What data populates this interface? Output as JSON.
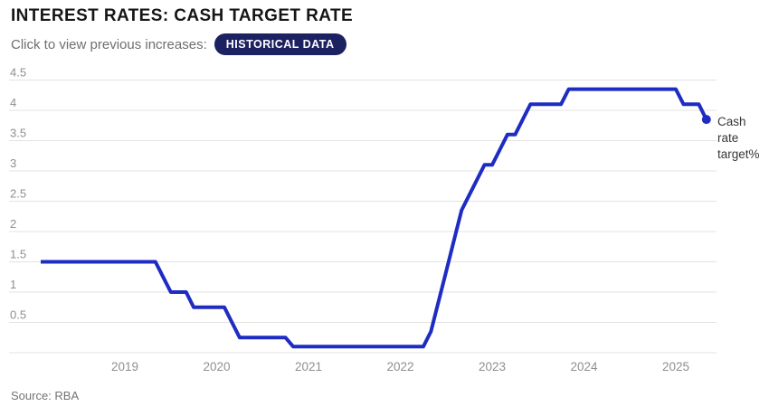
{
  "header": {
    "title": "INTEREST RATES: CASH TARGET RATE",
    "subtitle": "Click to view previous increases:",
    "badge_label": "HISTORICAL DATA"
  },
  "footer": {
    "source": "Source: RBA"
  },
  "colors": {
    "line": "#1e2cc2",
    "badge_bg": "#1b2161",
    "grid": "#e3e3e3",
    "axis_label": "#8f8f8f",
    "annotation": "#373737"
  },
  "chart_data": {
    "type": "line",
    "title": "Interest rates: cash target rate",
    "xlabel": "",
    "ylabel": "",
    "ylim": [
      0,
      4.5
    ],
    "grid": true,
    "y_ticks": [
      0.5,
      1,
      1.5,
      2,
      2.5,
      3,
      3.5,
      4,
      4.5
    ],
    "x_ticks": [
      "2019",
      "2020",
      "2021",
      "2022",
      "2023",
      "2024",
      "2025"
    ],
    "annotation_lines": [
      "Cash",
      "rate",
      "target%"
    ],
    "series": [
      {
        "name": "Cash rate target%",
        "points": [
          [
            "2018-02",
            1.5
          ],
          [
            "2018-03",
            1.5
          ],
          [
            "2018-04",
            1.5
          ],
          [
            "2018-05",
            1.5
          ],
          [
            "2018-06",
            1.5
          ],
          [
            "2018-07",
            1.5
          ],
          [
            "2018-08",
            1.5
          ],
          [
            "2018-09",
            1.5
          ],
          [
            "2018-10",
            1.5
          ],
          [
            "2018-11",
            1.5
          ],
          [
            "2018-12",
            1.5
          ],
          [
            "2019-01",
            1.5
          ],
          [
            "2019-02",
            1.5
          ],
          [
            "2019-03",
            1.5
          ],
          [
            "2019-04",
            1.5
          ],
          [
            "2019-05",
            1.5
          ],
          [
            "2019-06",
            1.25
          ],
          [
            "2019-07",
            1.0
          ],
          [
            "2019-08",
            1.0
          ],
          [
            "2019-09",
            1.0
          ],
          [
            "2019-10",
            0.75
          ],
          [
            "2019-11",
            0.75
          ],
          [
            "2019-12",
            0.75
          ],
          [
            "2020-01",
            0.75
          ],
          [
            "2020-02",
            0.75
          ],
          [
            "2020-03",
            0.5
          ],
          [
            "2020-04",
            0.25
          ],
          [
            "2020-05",
            0.25
          ],
          [
            "2020-06",
            0.25
          ],
          [
            "2020-07",
            0.25
          ],
          [
            "2020-08",
            0.25
          ],
          [
            "2020-09",
            0.25
          ],
          [
            "2020-10",
            0.25
          ],
          [
            "2020-11",
            0.1
          ],
          [
            "2020-12",
            0.1
          ],
          [
            "2021-01",
            0.1
          ],
          [
            "2021-02",
            0.1
          ],
          [
            "2021-03",
            0.1
          ],
          [
            "2021-04",
            0.1
          ],
          [
            "2021-05",
            0.1
          ],
          [
            "2021-06",
            0.1
          ],
          [
            "2021-07",
            0.1
          ],
          [
            "2021-08",
            0.1
          ],
          [
            "2021-09",
            0.1
          ],
          [
            "2021-10",
            0.1
          ],
          [
            "2021-11",
            0.1
          ],
          [
            "2021-12",
            0.1
          ],
          [
            "2022-01",
            0.1
          ],
          [
            "2022-02",
            0.1
          ],
          [
            "2022-03",
            0.1
          ],
          [
            "2022-04",
            0.1
          ],
          [
            "2022-05",
            0.35
          ],
          [
            "2022-06",
            0.85
          ],
          [
            "2022-07",
            1.35
          ],
          [
            "2022-08",
            1.85
          ],
          [
            "2022-09",
            2.35
          ],
          [
            "2022-10",
            2.6
          ],
          [
            "2022-11",
            2.85
          ],
          [
            "2022-12",
            3.1
          ],
          [
            "2023-01",
            3.1
          ],
          [
            "2023-02",
            3.35
          ],
          [
            "2023-03",
            3.6
          ],
          [
            "2023-04",
            3.6
          ],
          [
            "2023-05",
            3.85
          ],
          [
            "2023-06",
            4.1
          ],
          [
            "2023-07",
            4.1
          ],
          [
            "2023-08",
            4.1
          ],
          [
            "2023-09",
            4.1
          ],
          [
            "2023-10",
            4.1
          ],
          [
            "2023-11",
            4.35
          ],
          [
            "2023-12",
            4.35
          ],
          [
            "2024-01",
            4.35
          ],
          [
            "2024-02",
            4.35
          ],
          [
            "2024-03",
            4.35
          ],
          [
            "2024-04",
            4.35
          ],
          [
            "2024-05",
            4.35
          ],
          [
            "2024-06",
            4.35
          ],
          [
            "2024-07",
            4.35
          ],
          [
            "2024-08",
            4.35
          ],
          [
            "2024-09",
            4.35
          ],
          [
            "2024-10",
            4.35
          ],
          [
            "2024-11",
            4.35
          ],
          [
            "2024-12",
            4.35
          ],
          [
            "2025-01",
            4.35
          ],
          [
            "2025-02",
            4.1
          ],
          [
            "2025-03",
            4.1
          ],
          [
            "2025-04",
            4.1
          ],
          [
            "2025-05",
            3.85
          ]
        ]
      }
    ]
  }
}
